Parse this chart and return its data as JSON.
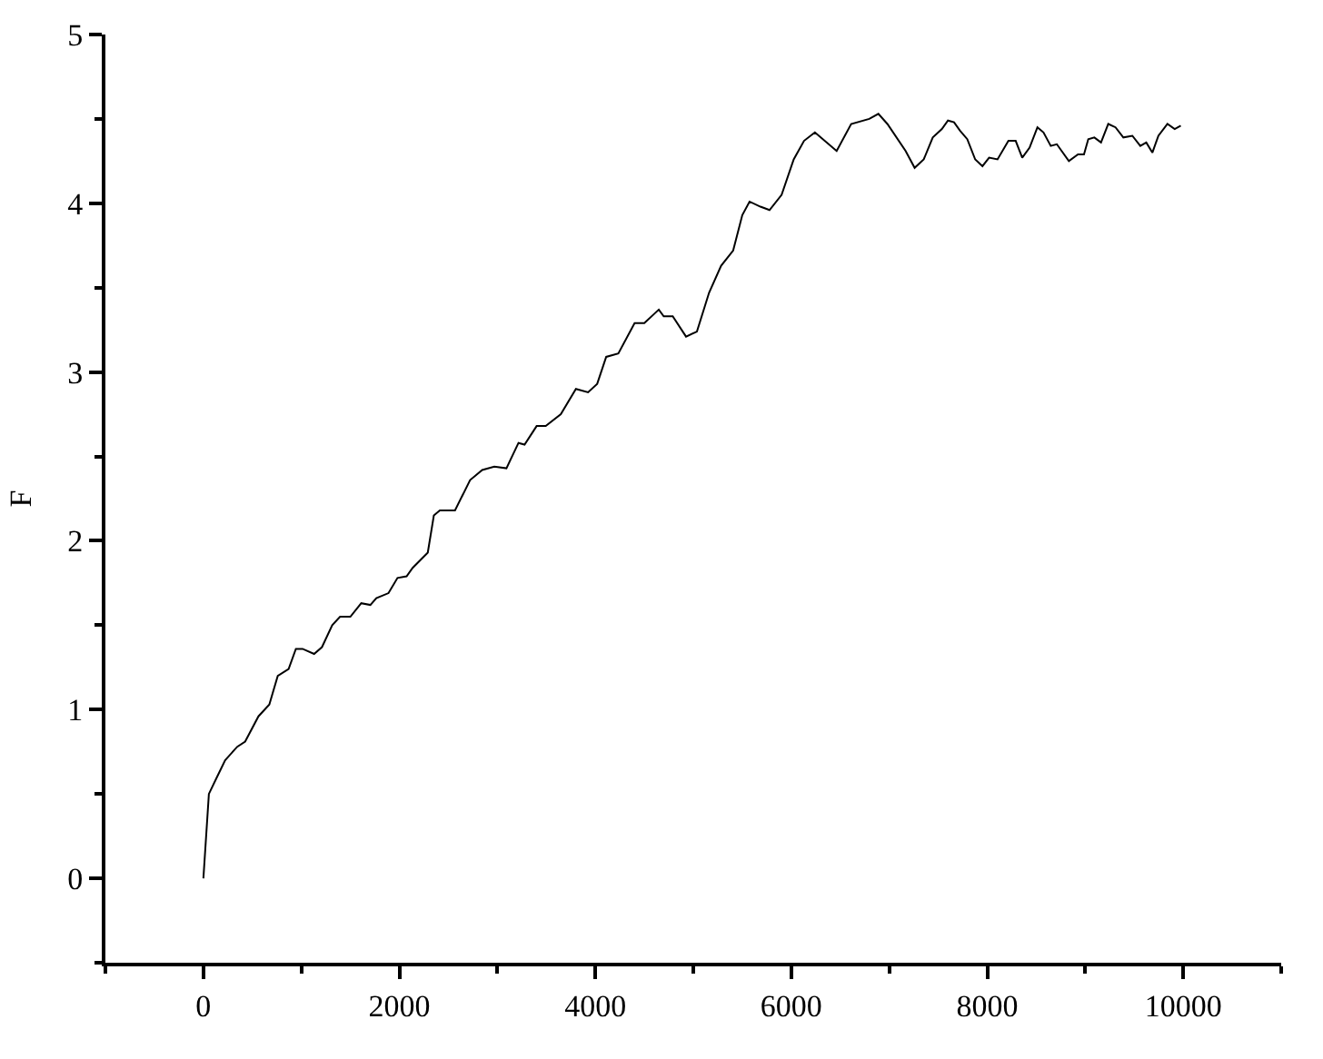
{
  "chart_data": {
    "type": "line",
    "ylabel": "F",
    "x": [
      0,
      56,
      130,
      222,
      346,
      426,
      562,
      673,
      759,
      870,
      944,
      1012,
      1130,
      1210,
      1315,
      1395,
      1500,
      1611,
      1704,
      1765,
      1889,
      1981,
      2074,
      2136,
      2290,
      2352,
      2413,
      2568,
      2722,
      2846,
      2969,
      3093,
      3216,
      3278,
      3401,
      3494,
      3648,
      3802,
      3926,
      4019,
      4111,
      4235,
      4401,
      4500,
      4648,
      4698,
      4790,
      4926,
      5037,
      5161,
      5284,
      5407,
      5500,
      5574,
      5685,
      5778,
      5901,
      6025,
      6130,
      6241,
      6463,
      6611,
      6796,
      6889,
      6981,
      7167,
      7259,
      7352,
      7444,
      7537,
      7599,
      7661,
      7722,
      7796,
      7877,
      7951,
      8019,
      8105,
      8216,
      8290,
      8357,
      8432,
      8512,
      8574,
      8648,
      8710,
      8833,
      8926,
      8987,
      9031,
      9093,
      9161,
      9235,
      9309,
      9389,
      9481,
      9562,
      9623,
      9685,
      9747,
      9839,
      9913,
      9975
    ],
    "series": [
      {
        "color": "#000000",
        "values": [
          0,
          0.5,
          0.59,
          0.7,
          0.78,
          0.81,
          0.96,
          1.03,
          1.2,
          1.24,
          1.36,
          1.36,
          1.33,
          1.37,
          1.5,
          1.55,
          1.55,
          1.63,
          1.62,
          1.66,
          1.69,
          1.78,
          1.79,
          1.84,
          1.93,
          2.15,
          2.18,
          2.18,
          2.36,
          2.42,
          2.44,
          2.43,
          2.58,
          2.57,
          2.68,
          2.68,
          2.75,
          2.9,
          2.88,
          2.93,
          3.09,
          3.11,
          3.29,
          3.29,
          3.37,
          3.33,
          3.33,
          3.21,
          3.24,
          3.47,
          3.63,
          3.72,
          3.93,
          4.01,
          3.98,
          3.96,
          4.05,
          4.26,
          4.37,
          4.42,
          4.31,
          4.47,
          4.5,
          4.53,
          4.47,
          4.31,
          4.21,
          4.26,
          4.39,
          4.44,
          4.49,
          4.48,
          4.43,
          4.38,
          4.26,
          4.22,
          4.27,
          4.26,
          4.37,
          4.37,
          4.27,
          4.33,
          4.45,
          4.42,
          4.34,
          4.35,
          4.25,
          4.29,
          4.29,
          4.38,
          4.39,
          4.36,
          4.47,
          4.45,
          4.39,
          4.4,
          4.34,
          4.36,
          4.3,
          4.4,
          4.47,
          4.44,
          4.46
        ]
      }
    ],
    "xlim": [
      -1000,
      11000
    ],
    "xticks": [
      0,
      {
        "value": 1000,
        "label": null
      },
      2000,
      {
        "value": 3000,
        "label": null
      },
      4000,
      {
        "value": 5000,
        "label": null
      },
      6000,
      {
        "value": 7000,
        "label": null
      },
      8000,
      {
        "value": 9000,
        "label": null
      },
      10000,
      {
        "value": -1000,
        "label": null
      },
      {
        "value": 11000,
        "label": null
      }
    ],
    "ylim": [
      -0.5,
      5
    ],
    "yticks": [
      0,
      {
        "value": 0.5,
        "label": null
      },
      1,
      {
        "value": 1.5,
        "label": null
      },
      2,
      {
        "value": 2.5,
        "label": null
      },
      3,
      {
        "value": 3.5,
        "label": null
      },
      4,
      {
        "value": 4.5,
        "label": null
      },
      5,
      {
        "value": -0.5,
        "label": null
      }
    ],
    "marker": "none",
    "line_style": "solid"
  }
}
